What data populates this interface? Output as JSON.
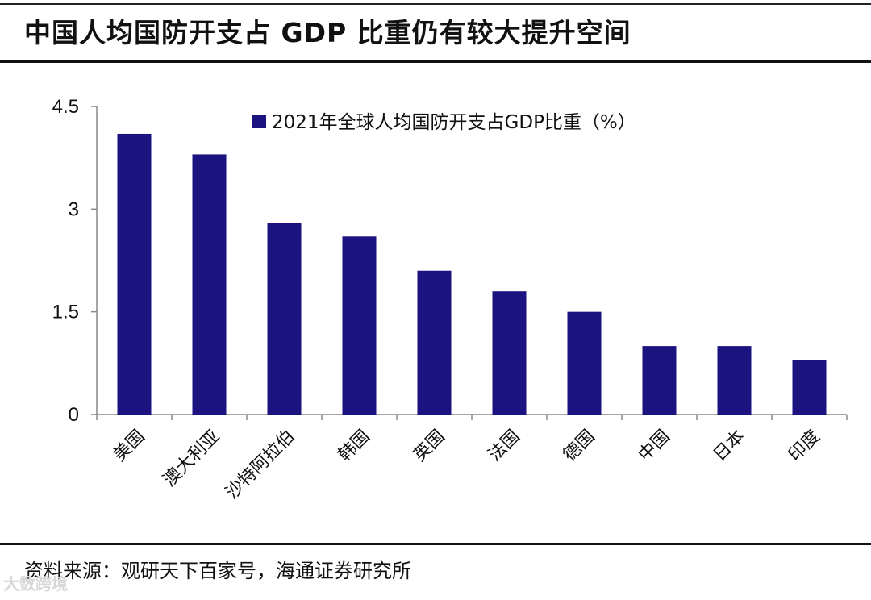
{
  "header": {
    "title": "中国人均国防开支占 GDP 比重仍有较大提升空间"
  },
  "footer": {
    "source": "资料来源：观研天下百家号，海通证券研究所",
    "watermark": "大数跨境"
  },
  "colors": {
    "bar": "#1a1380",
    "axis": "#888888",
    "text": "#111111"
  },
  "chart_data": {
    "type": "bar",
    "title": "",
    "legend": "2021年全球人均国防开支占GDP比重（%）",
    "legend_position": "top-right",
    "categories": [
      "美国",
      "澳大利亚",
      "沙特阿拉伯",
      "韩国",
      "英国",
      "法国",
      "德国",
      "中国",
      "日本",
      "印度"
    ],
    "values": [
      4.1,
      3.8,
      2.8,
      2.6,
      2.1,
      1.8,
      1.5,
      1.0,
      1.0,
      0.8
    ],
    "ylim": [
      0,
      4.5
    ],
    "yticks": [
      0,
      1.5,
      3,
      4.5
    ],
    "ytick_labels": [
      "0",
      "1.5",
      "3",
      "4.5"
    ],
    "xlabel": "",
    "ylabel": "",
    "grid": false
  }
}
